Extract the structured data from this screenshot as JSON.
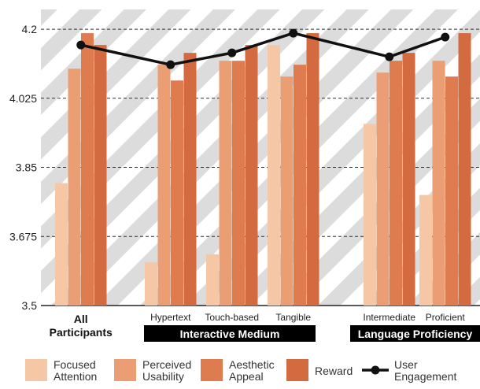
{
  "chart_data": {
    "type": "bar",
    "ylim": [
      3.5,
      4.25
    ],
    "yticks": [
      "3.5",
      "3.675",
      "3.85",
      "4.025",
      "4.2"
    ],
    "ytick_values": [
      3.5,
      3.675,
      3.85,
      4.025,
      4.2
    ],
    "grid": "dashed horizontal",
    "background": "diagonal stripes",
    "categories": [
      "All Participants",
      "Hypertext",
      "Touch-based",
      "Tangible",
      "Intermediate",
      "Proficient"
    ],
    "groups": [
      {
        "label": "Interactive Medium",
        "members": [
          "Hypertext",
          "Touch-based",
          "Tangible"
        ]
      },
      {
        "label": "Language Proficiency",
        "members": [
          "Intermediate",
          "Proficient"
        ]
      }
    ],
    "series": [
      {
        "name": "Focused Attention",
        "kind": "bar",
        "color": "#F6C7A5",
        "values": [
          3.81,
          3.61,
          3.63,
          4.16,
          3.96,
          3.78
        ]
      },
      {
        "name": "Perceived Usability",
        "kind": "bar",
        "color": "#EB9E74",
        "values": [
          4.1,
          4.11,
          4.12,
          4.08,
          4.09,
          4.12
        ]
      },
      {
        "name": "Aesthetic Appeal",
        "kind": "bar",
        "color": "#DE7C4F",
        "values": [
          4.19,
          4.07,
          4.12,
          4.11,
          4.12,
          4.08
        ]
      },
      {
        "name": "Reward",
        "kind": "bar",
        "color": "#D46A3F",
        "values": [
          4.16,
          4.14,
          4.16,
          4.19,
          4.14,
          4.19
        ]
      },
      {
        "name": "User Engagement",
        "kind": "line",
        "color": "#111111",
        "values": [
          4.16,
          4.11,
          4.14,
          4.19,
          4.13,
          4.18
        ]
      }
    ]
  }
}
